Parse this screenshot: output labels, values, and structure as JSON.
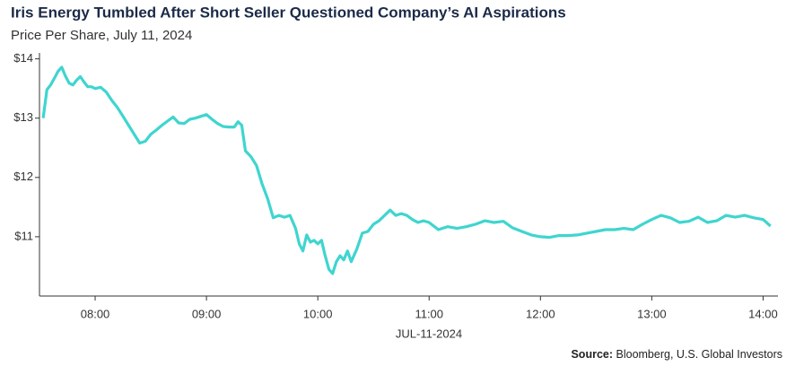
{
  "chart_data": {
    "type": "line",
    "title": "Iris Energy Tumbled After Short Seller Questioned Company’s AI Aspirations",
    "subtitle": "Price Per Share, July 11, 2024",
    "xlabel": "JUL-11-2024",
    "source_label": "Source:",
    "source": "Bloomberg, U.S. Global Investors",
    "xlim": [
      450,
      848
    ],
    "xticks": [
      {
        "value": 480,
        "label": "08:00"
      },
      {
        "value": 540,
        "label": "09:00"
      },
      {
        "value": 600,
        "label": "10:00"
      },
      {
        "value": 660,
        "label": "11:00"
      },
      {
        "value": 720,
        "label": "12:00"
      },
      {
        "value": 780,
        "label": "13:00"
      },
      {
        "value": 840,
        "label": "14:00"
      }
    ],
    "ylim": [
      10,
      14.1
    ],
    "yticks": [
      {
        "value": 11,
        "label": "$11"
      },
      {
        "value": 12,
        "label": "$12"
      },
      {
        "value": 13,
        "label": "$13"
      },
      {
        "value": 14,
        "label": "$14"
      }
    ],
    "grid": false,
    "x": [
      452,
      454,
      456,
      458,
      460,
      462,
      464,
      466,
      468,
      470,
      472,
      474,
      476,
      478,
      480,
      483,
      486,
      489,
      492,
      495,
      498,
      501,
      504,
      507,
      510,
      513,
      516,
      519,
      522,
      525,
      528,
      531,
      534,
      537,
      540,
      543,
      546,
      549,
      552,
      555,
      557,
      559,
      561,
      564,
      567,
      570,
      573,
      576,
      579,
      582,
      585,
      588,
      590,
      592,
      594,
      596,
      598,
      600,
      602,
      604,
      606,
      608,
      610,
      612,
      614,
      616,
      618,
      621,
      624,
      627,
      630,
      633,
      636,
      639,
      642,
      645,
      648,
      651,
      654,
      657,
      660,
      665,
      670,
      675,
      680,
      685,
      690,
      695,
      700,
      705,
      710,
      715,
      720,
      725,
      730,
      735,
      740,
      745,
      750,
      755,
      760,
      765,
      770,
      775,
      780,
      785,
      790,
      795,
      800,
      805,
      810,
      815,
      820,
      825,
      830,
      835,
      840,
      844
    ],
    "series": [
      {
        "name": "Price",
        "color": "#3fd5cf",
        "values": [
          13.0,
          13.48,
          13.56,
          13.67,
          13.79,
          13.86,
          13.71,
          13.59,
          13.56,
          13.64,
          13.7,
          13.61,
          13.53,
          13.53,
          13.5,
          13.52,
          13.44,
          13.3,
          13.18,
          13.03,
          12.88,
          12.73,
          12.58,
          12.61,
          12.73,
          12.8,
          12.88,
          12.95,
          13.02,
          12.92,
          12.91,
          12.98,
          13.0,
          13.03,
          13.06,
          12.98,
          12.91,
          12.86,
          12.85,
          12.85,
          12.94,
          12.88,
          12.45,
          12.35,
          12.2,
          11.89,
          11.64,
          11.32,
          11.36,
          11.33,
          11.36,
          11.14,
          10.88,
          10.76,
          11.03,
          10.91,
          10.94,
          10.88,
          10.94,
          10.68,
          10.45,
          10.38,
          10.58,
          10.68,
          10.61,
          10.76,
          10.58,
          10.79,
          11.06,
          11.09,
          11.21,
          11.27,
          11.36,
          11.45,
          11.36,
          11.39,
          11.36,
          11.29,
          11.24,
          11.27,
          11.24,
          11.12,
          11.17,
          11.14,
          11.17,
          11.21,
          11.27,
          11.24,
          11.26,
          11.15,
          11.09,
          11.03,
          11.0,
          10.99,
          11.02,
          11.02,
          11.03,
          11.06,
          11.09,
          11.12,
          11.12,
          11.14,
          11.12,
          11.21,
          11.29,
          11.36,
          11.32,
          11.24,
          11.26,
          11.33,
          11.24,
          11.27,
          11.36,
          11.33,
          11.36,
          11.32,
          11.29,
          11.18
        ]
      }
    ]
  }
}
